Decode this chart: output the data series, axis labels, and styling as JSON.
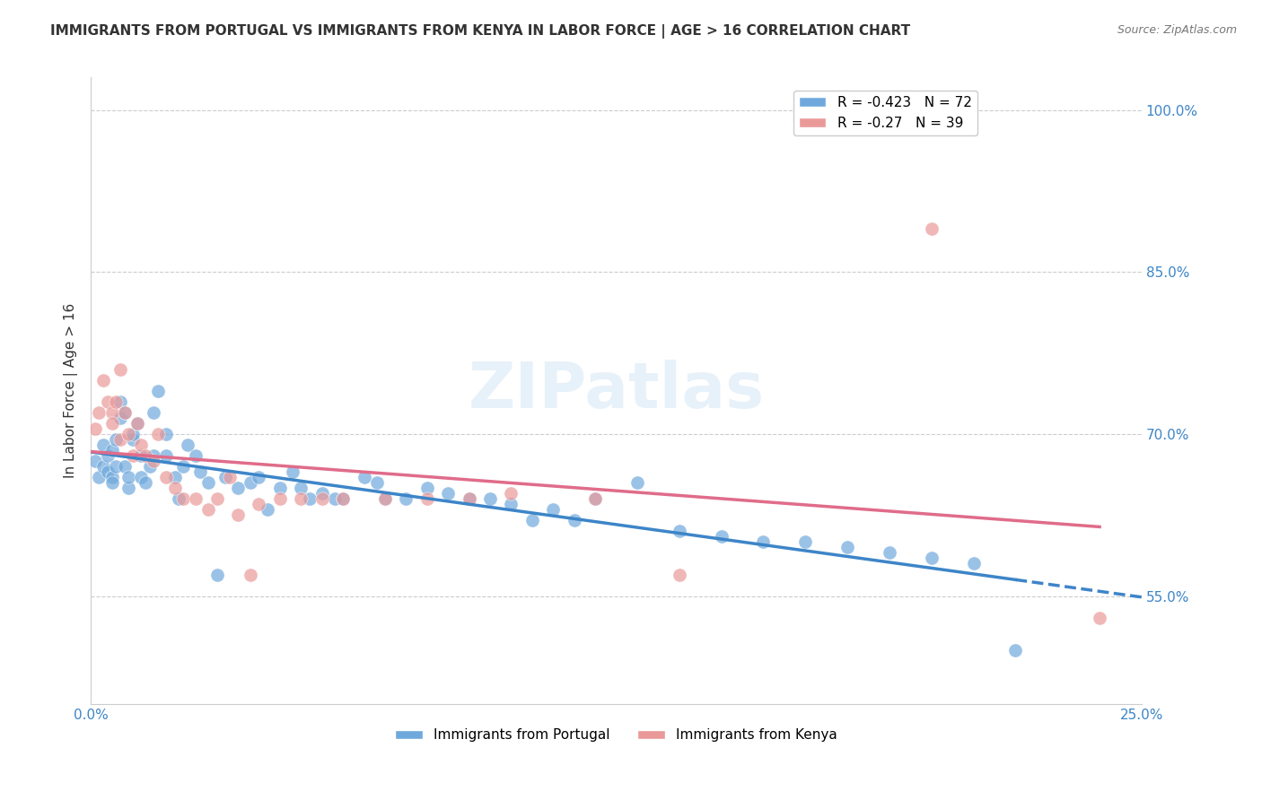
{
  "title": "IMMIGRANTS FROM PORTUGAL VS IMMIGRANTS FROM KENYA IN LABOR FORCE | AGE > 16 CORRELATION CHART",
  "source": "Source: ZipAtlas.com",
  "xlabel": "",
  "ylabel": "In Labor Force | Age > 16",
  "legend_label1": "Immigrants from Portugal",
  "legend_label2": "Immigrants from Kenya",
  "r1": -0.423,
  "n1": 72,
  "r2": -0.27,
  "n2": 39,
  "color1": "#6fa8dc",
  "color2": "#ea9999",
  "line_color1": "#3d85c8",
  "line_color2": "#e06c8a",
  "xlim": [
    0.0,
    0.25
  ],
  "ylim": [
    0.45,
    1.03
  ],
  "yticks": [
    0.55,
    0.7,
    0.85,
    1.0
  ],
  "ytick_labels": [
    "55.0%",
    "70.0%",
    "85.0%",
    "100.0%"
  ],
  "xticks": [
    0.0,
    0.05,
    0.1,
    0.15,
    0.2,
    0.25
  ],
  "xtick_labels": [
    "0.0%",
    "",
    "",
    "",
    "",
    "25.0%"
  ],
  "watermark": "ZIPatlas",
  "portugal_x": [
    0.001,
    0.002,
    0.003,
    0.003,
    0.004,
    0.004,
    0.005,
    0.005,
    0.005,
    0.006,
    0.006,
    0.007,
    0.007,
    0.008,
    0.008,
    0.009,
    0.009,
    0.01,
    0.01,
    0.011,
    0.012,
    0.012,
    0.013,
    0.014,
    0.015,
    0.015,
    0.016,
    0.018,
    0.018,
    0.02,
    0.021,
    0.022,
    0.023,
    0.025,
    0.026,
    0.028,
    0.03,
    0.032,
    0.035,
    0.038,
    0.04,
    0.042,
    0.045,
    0.048,
    0.05,
    0.052,
    0.055,
    0.058,
    0.06,
    0.065,
    0.068,
    0.07,
    0.075,
    0.08,
    0.085,
    0.09,
    0.095,
    0.1,
    0.105,
    0.11,
    0.115,
    0.12,
    0.13,
    0.14,
    0.15,
    0.16,
    0.17,
    0.18,
    0.19,
    0.2,
    0.21,
    0.22
  ],
  "portugal_y": [
    0.675,
    0.66,
    0.69,
    0.67,
    0.68,
    0.665,
    0.685,
    0.66,
    0.655,
    0.695,
    0.67,
    0.715,
    0.73,
    0.72,
    0.67,
    0.65,
    0.66,
    0.695,
    0.7,
    0.71,
    0.68,
    0.66,
    0.655,
    0.67,
    0.72,
    0.68,
    0.74,
    0.7,
    0.68,
    0.66,
    0.64,
    0.67,
    0.69,
    0.68,
    0.665,
    0.655,
    0.57,
    0.66,
    0.65,
    0.655,
    0.66,
    0.63,
    0.65,
    0.665,
    0.65,
    0.64,
    0.645,
    0.64,
    0.64,
    0.66,
    0.655,
    0.64,
    0.64,
    0.65,
    0.645,
    0.64,
    0.64,
    0.635,
    0.62,
    0.63,
    0.62,
    0.64,
    0.655,
    0.61,
    0.605,
    0.6,
    0.6,
    0.595,
    0.59,
    0.585,
    0.58,
    0.5
  ],
  "kenya_x": [
    0.001,
    0.002,
    0.003,
    0.004,
    0.005,
    0.005,
    0.006,
    0.007,
    0.007,
    0.008,
    0.009,
    0.01,
    0.011,
    0.012,
    0.013,
    0.015,
    0.016,
    0.018,
    0.02,
    0.022,
    0.025,
    0.028,
    0.03,
    0.033,
    0.035,
    0.038,
    0.04,
    0.045,
    0.05,
    0.055,
    0.06,
    0.07,
    0.08,
    0.09,
    0.1,
    0.12,
    0.14,
    0.2,
    0.24
  ],
  "kenya_y": [
    0.705,
    0.72,
    0.75,
    0.73,
    0.72,
    0.71,
    0.73,
    0.695,
    0.76,
    0.72,
    0.7,
    0.68,
    0.71,
    0.69,
    0.68,
    0.675,
    0.7,
    0.66,
    0.65,
    0.64,
    0.64,
    0.63,
    0.64,
    0.66,
    0.625,
    0.57,
    0.635,
    0.64,
    0.64,
    0.64,
    0.64,
    0.64,
    0.64,
    0.64,
    0.645,
    0.64,
    0.57,
    0.89,
    0.53
  ]
}
